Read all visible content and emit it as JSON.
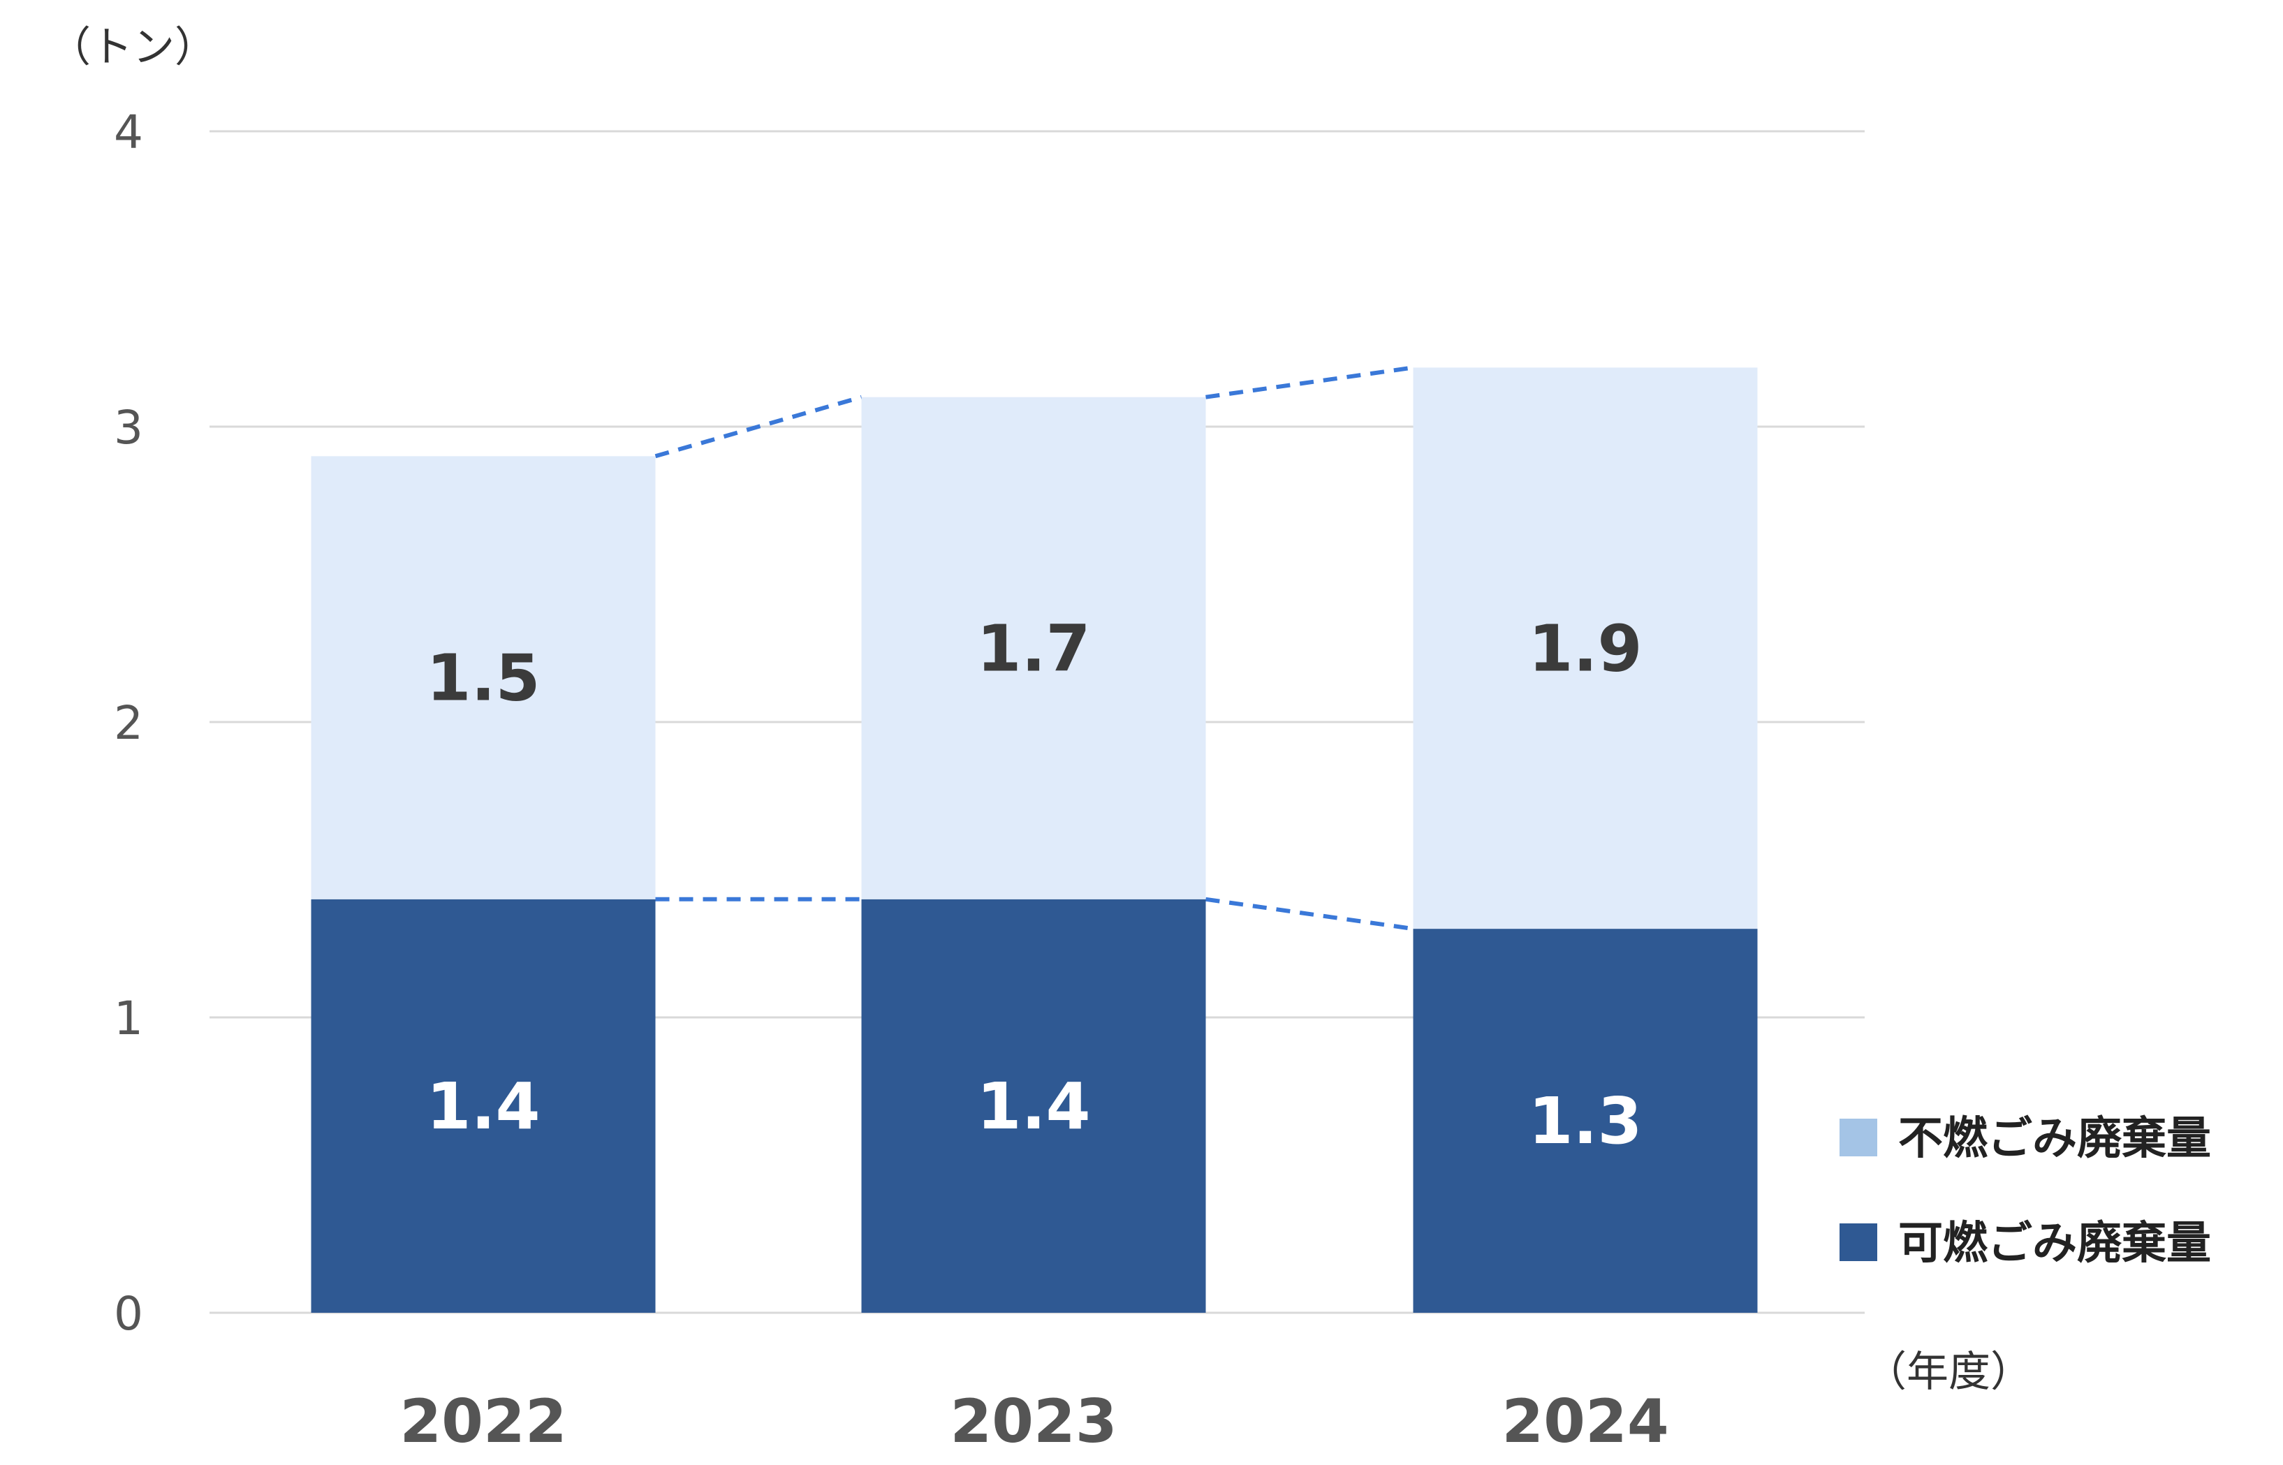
{
  "chart_data": {
    "type": "bar",
    "stacked": true,
    "categories": [
      "2022",
      "2023",
      "2024"
    ],
    "series": [
      {
        "name": "可燃ごみ廃棄量",
        "values": [
          1.4,
          1.4,
          1.3
        ],
        "color": "#2f5993",
        "label_color": "#ffffff"
      },
      {
        "name": "不燃ごみ廃棄量",
        "values": [
          1.5,
          1.7,
          1.9
        ],
        "color": "#e0ebfa",
        "label_color": "#3b3b3b"
      }
    ],
    "data_labels": [
      [
        "1.4",
        "1.4",
        "1.3"
      ],
      [
        "1.5",
        "1.7",
        "1.9"
      ]
    ],
    "legend": {
      "placement": "bottom-right",
      "entries": [
        {
          "label": "不燃ごみ廃棄量",
          "swatch_color": "#a4c4e6"
        },
        {
          "label": "可燃ごみ廃棄量",
          "swatch_color": "#2f5993"
        }
      ]
    },
    "ylabel": "（トン）",
    "xlabel": "（年度）",
    "ylim": [
      0,
      4
    ],
    "yticks": [
      "0",
      "1",
      "2",
      "3",
      "4"
    ],
    "grid": true,
    "connector_color": "#3a78d8"
  }
}
